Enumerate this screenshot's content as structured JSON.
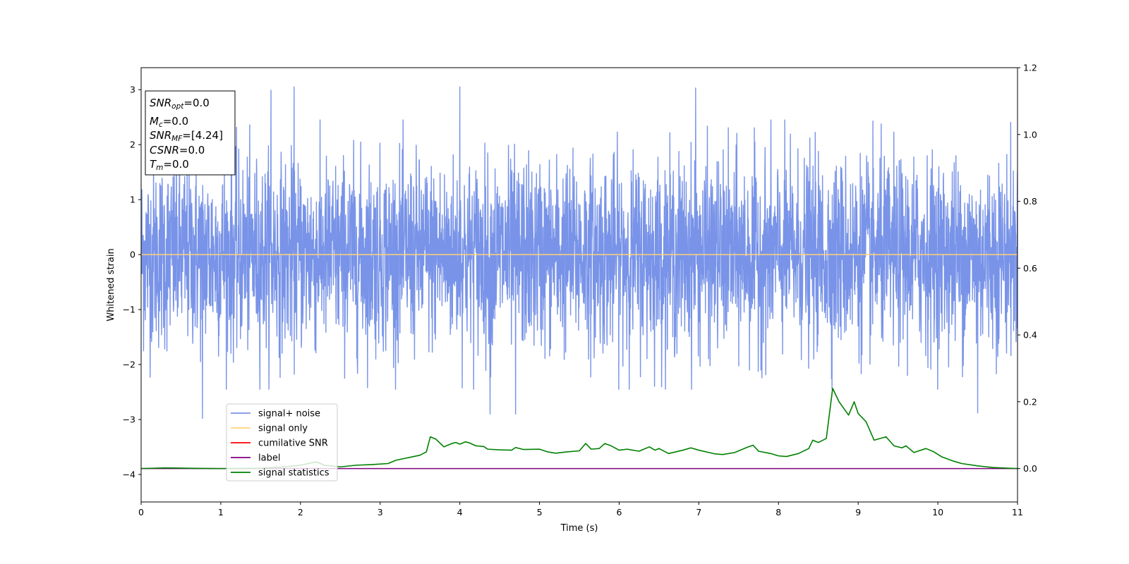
{
  "chart_data": {
    "type": "line",
    "xlabel": "Time (s)",
    "ylabel": "Whitened strain",
    "xlim": [
      0,
      11
    ],
    "ylim": [
      -4.5,
      3.4
    ],
    "y2lim": [
      -0.1,
      1.2
    ],
    "xticks": [
      0,
      1,
      2,
      3,
      4,
      5,
      6,
      7,
      8,
      9,
      10,
      11
    ],
    "yticks": [
      -4,
      -3,
      -2,
      -1,
      0,
      1,
      2,
      3
    ],
    "y2ticks": [
      "0.0",
      "0.2",
      "0.4",
      "0.6",
      "0.8",
      "1.0",
      "1.2"
    ],
    "grid": false,
    "legend_position": "lower-left",
    "annotation": [
      {
        "base": "SNR",
        "sub": "opt",
        "value": "=0.0"
      },
      {
        "base": "M",
        "sub": "c",
        "value": "=0.0"
      },
      {
        "base": "SNR",
        "sub": "MF",
        "value": "=[4.24]"
      },
      {
        "base": "CSNR",
        "sub": "",
        "value": "=0.0"
      },
      {
        "base": "T",
        "sub": "m",
        "value": "=0.0"
      }
    ],
    "series": [
      {
        "name": "signal+ noise",
        "color": "#7893e8",
        "axis": "left",
        "description": "whitened noise, approx. zero mean, spanning roughly -2.9 to 3.05",
        "spike_peaks": [
          [
            0.77,
            -2.98
          ],
          [
            1.63,
            2.99
          ],
          [
            1.92,
            3.05
          ],
          [
            4.0,
            3.05
          ],
          [
            4.38,
            -2.9
          ],
          [
            4.7,
            -2.9
          ],
          [
            6.96,
            3.03
          ],
          [
            10.5,
            -2.88
          ]
        ]
      },
      {
        "name": "signal only",
        "color": "#ffd27a",
        "axis": "left",
        "y": [
          [
            0,
            0
          ],
          [
            11,
            0
          ]
        ]
      },
      {
        "name": "cumilative SNR",
        "color": "#ff0000",
        "axis": "right",
        "y": []
      },
      {
        "name": "label",
        "color": "#800080",
        "axis": "right",
        "y": [
          [
            0,
            0.0
          ],
          [
            11,
            0.0
          ]
        ]
      },
      {
        "name": "signal statistics",
        "color": "#008000",
        "axis": "right",
        "points": [
          [
            0.0,
            0.0
          ],
          [
            0.3,
            0.002
          ],
          [
            0.6,
            0.001
          ],
          [
            1.0,
            0.0
          ],
          [
            1.5,
            0.001
          ],
          [
            1.8,
            0.005
          ],
          [
            2.0,
            0.01
          ],
          [
            2.2,
            0.02
          ],
          [
            2.3,
            0.01
          ],
          [
            2.5,
            0.005
          ],
          [
            2.7,
            0.01
          ],
          [
            2.9,
            0.012
          ],
          [
            3.1,
            0.015
          ],
          [
            3.2,
            0.025
          ],
          [
            3.4,
            0.035
          ],
          [
            3.5,
            0.04
          ],
          [
            3.58,
            0.05
          ],
          [
            3.63,
            0.095
          ],
          [
            3.7,
            0.088
          ],
          [
            3.8,
            0.065
          ],
          [
            3.9,
            0.075
          ],
          [
            3.95,
            0.078
          ],
          [
            4.0,
            0.073
          ],
          [
            4.07,
            0.08
          ],
          [
            4.12,
            0.077
          ],
          [
            4.2,
            0.068
          ],
          [
            4.3,
            0.066
          ],
          [
            4.35,
            0.058
          ],
          [
            4.5,
            0.056
          ],
          [
            4.65,
            0.055
          ],
          [
            4.7,
            0.063
          ],
          [
            4.8,
            0.057
          ],
          [
            5.0,
            0.058
          ],
          [
            5.1,
            0.05
          ],
          [
            5.2,
            0.046
          ],
          [
            5.35,
            0.05
          ],
          [
            5.5,
            0.053
          ],
          [
            5.58,
            0.075
          ],
          [
            5.65,
            0.058
          ],
          [
            5.75,
            0.06
          ],
          [
            5.82,
            0.075
          ],
          [
            5.9,
            0.068
          ],
          [
            6.0,
            0.055
          ],
          [
            6.1,
            0.058
          ],
          [
            6.25,
            0.052
          ],
          [
            6.38,
            0.065
          ],
          [
            6.45,
            0.055
          ],
          [
            6.5,
            0.06
          ],
          [
            6.62,
            0.045
          ],
          [
            6.8,
            0.055
          ],
          [
            6.9,
            0.062
          ],
          [
            7.0,
            0.055
          ],
          [
            7.2,
            0.044
          ],
          [
            7.3,
            0.042
          ],
          [
            7.45,
            0.048
          ],
          [
            7.6,
            0.063
          ],
          [
            7.68,
            0.07
          ],
          [
            7.75,
            0.052
          ],
          [
            7.9,
            0.045
          ],
          [
            8.0,
            0.038
          ],
          [
            8.1,
            0.036
          ],
          [
            8.25,
            0.045
          ],
          [
            8.38,
            0.06
          ],
          [
            8.43,
            0.085
          ],
          [
            8.5,
            0.078
          ],
          [
            8.6,
            0.09
          ],
          [
            8.68,
            0.24
          ],
          [
            8.76,
            0.2
          ],
          [
            8.88,
            0.16
          ],
          [
            8.95,
            0.2
          ],
          [
            9.0,
            0.165
          ],
          [
            9.1,
            0.14
          ],
          [
            9.2,
            0.085
          ],
          [
            9.35,
            0.095
          ],
          [
            9.45,
            0.068
          ],
          [
            9.55,
            0.062
          ],
          [
            9.6,
            0.068
          ],
          [
            9.7,
            0.048
          ],
          [
            9.85,
            0.06
          ],
          [
            9.95,
            0.05
          ],
          [
            10.05,
            0.035
          ],
          [
            10.2,
            0.022
          ],
          [
            10.3,
            0.015
          ],
          [
            10.5,
            0.008
          ],
          [
            10.7,
            0.003
          ],
          [
            11.0,
            0.0
          ]
        ]
      }
    ]
  }
}
